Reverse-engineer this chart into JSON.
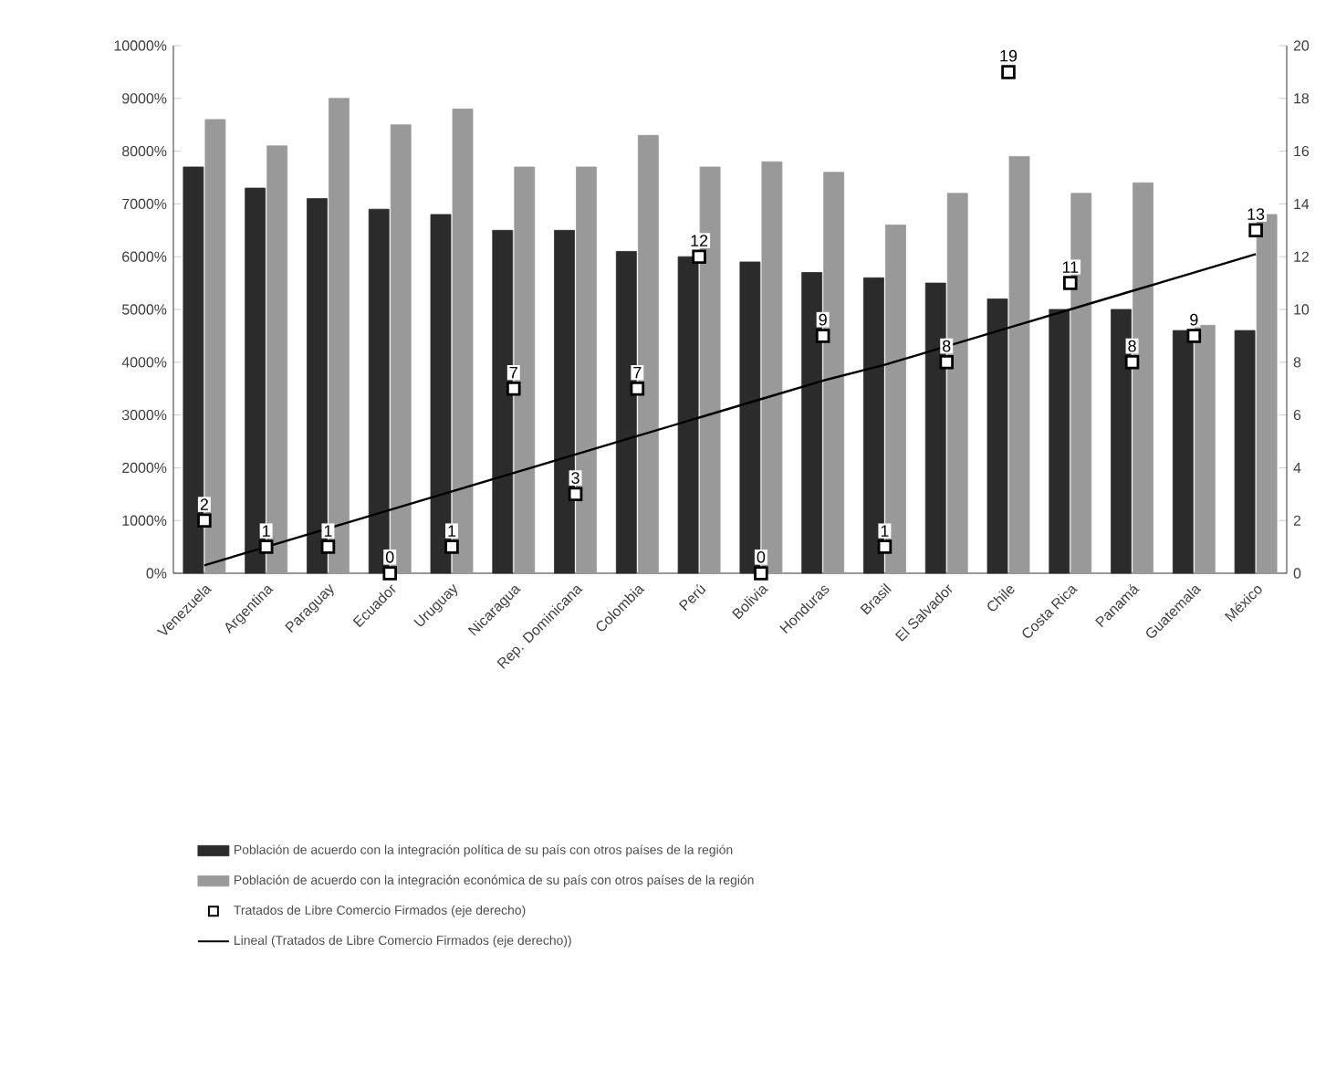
{
  "chart_data": {
    "type": "bar",
    "categories": [
      "Venezuela",
      "Argentina",
      "Paraguay",
      "Ecuador",
      "Uruguay",
      "Nicaragua",
      "Rep. Dominicana",
      "Colombia",
      "Perú",
      "Bolivia",
      "Honduras",
      "Brasil",
      "El Salvador",
      "Chile",
      "Costa Rica",
      "Panamá",
      "Guatemala",
      "México"
    ],
    "series": [
      {
        "name": "Población de acuerdo con la integración política de su país con otros países de la región",
        "color": "#2b2b2b",
        "values": [
          7700,
          7300,
          7100,
          6900,
          6800,
          6500,
          6500,
          6100,
          6000,
          5900,
          5700,
          5600,
          5500,
          5200,
          5000,
          5000,
          4600,
          4600
        ]
      },
      {
        "name": "Población de acuerdo con la integración económica de su país con otros países de la región",
        "color": "#999999",
        "values": [
          8600,
          8100,
          9000,
          8500,
          8800,
          7700,
          7700,
          8300,
          7700,
          7800,
          7600,
          6600,
          7200,
          7900,
          7200,
          7400,
          4700,
          6800
        ]
      },
      {
        "name": "Tratados de Libre Comercio Firmados (eje derecho)",
        "type": "scatter",
        "axis": "y2",
        "marker": "square",
        "color": "#000000",
        "data_labels": true,
        "values": [
          2,
          1,
          1,
          0,
          1,
          7,
          3,
          7,
          12,
          0,
          9,
          1,
          8,
          19,
          11,
          8,
          9,
          13
        ]
      },
      {
        "name": "Lineal (Tratados de Libre Comercio Firmados (eje derecho))",
        "type": "line",
        "axis": "y2",
        "marker": "none",
        "color": "#000000",
        "values": [
          0.3,
          1.0,
          1.7,
          2.4,
          3.1,
          3.8,
          4.5,
          5.2,
          5.9,
          6.6,
          7.3,
          7.9,
          8.6,
          9.3,
          10.0,
          10.7,
          11.4,
          12.1
        ]
      }
    ],
    "ylim": [
      0,
      10000
    ],
    "yticks": [
      {
        "value": 0,
        "label": "0%"
      },
      {
        "value": 1000,
        "label": "1000%"
      },
      {
        "value": 2000,
        "label": "2000%"
      },
      {
        "value": 3000,
        "label": "3000%"
      },
      {
        "value": 4000,
        "label": "4000%"
      },
      {
        "value": 5000,
        "label": "5000%"
      },
      {
        "value": 6000,
        "label": "6000%"
      },
      {
        "value": 7000,
        "label": "7000%"
      },
      {
        "value": 8000,
        "label": "8000%"
      },
      {
        "value": 9000,
        "label": "9000%"
      },
      {
        "value": 10000,
        "label": "10000%"
      }
    ],
    "y2lim": [
      0,
      20
    ],
    "y2ticks": [
      0,
      2,
      4,
      6,
      8,
      10,
      12,
      14,
      16,
      18,
      20
    ],
    "grid": false,
    "legend": "bottom"
  }
}
